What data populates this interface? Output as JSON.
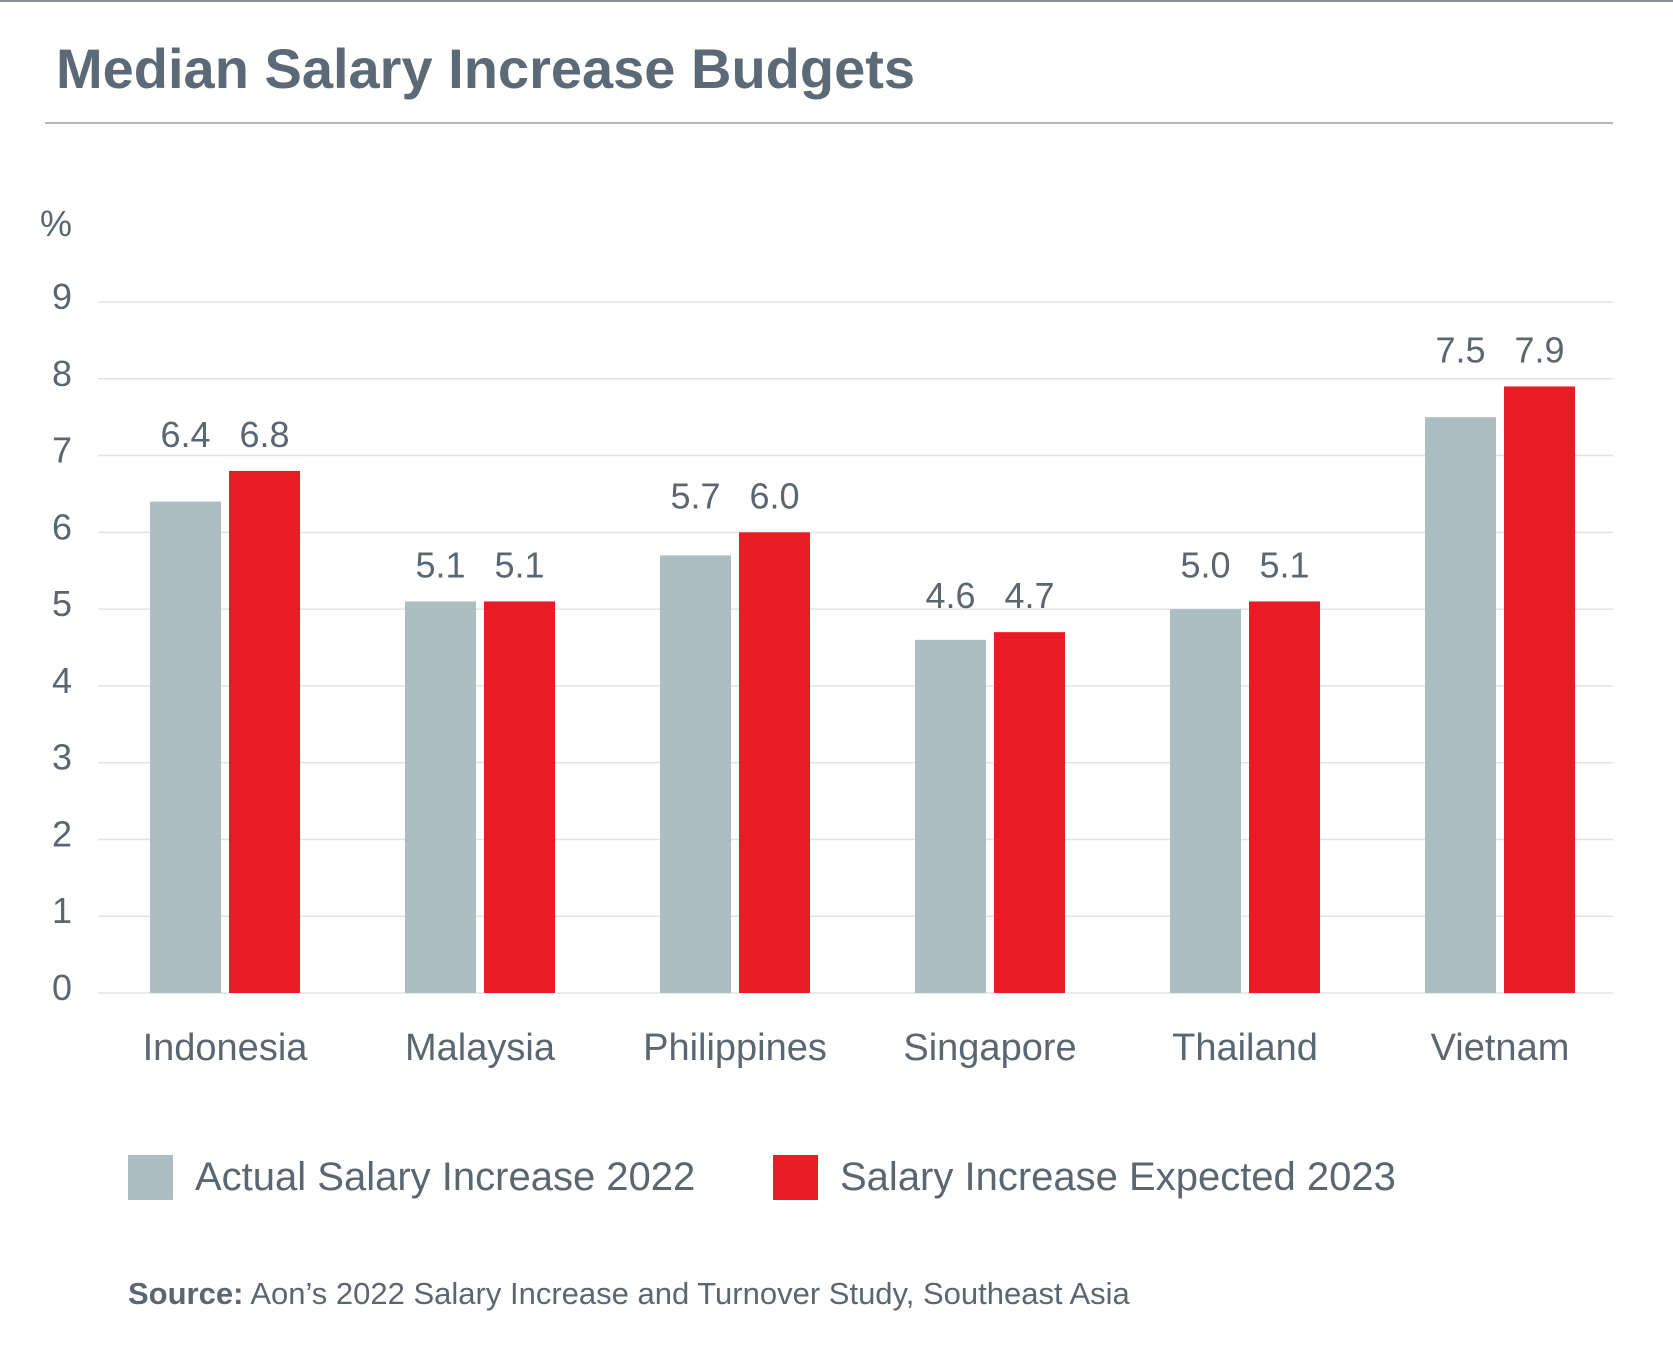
{
  "title": "Median Salary Increase Budgets",
  "colors": {
    "series_2022": "#adbec3",
    "series_2023": "#e81c24",
    "text": "#5b6770",
    "grid": "#e1e3e5"
  },
  "chart_data": {
    "type": "bar",
    "title": "Median Salary Increase Budgets",
    "xlabel": "",
    "ylabel": "%",
    "ylim": [
      0,
      9
    ],
    "yticks": [
      0,
      1,
      2,
      3,
      4,
      5,
      6,
      7,
      8,
      9
    ],
    "grid": true,
    "legend_position": "bottom",
    "categories": [
      "Indonesia",
      "Malaysia",
      "Philippines",
      "Singapore",
      "Thailand",
      "Vietnam"
    ],
    "series": [
      {
        "name": "Actual Salary Increase 2022",
        "color": "#adbec3",
        "values": [
          6.4,
          5.1,
          5.7,
          4.6,
          5.0,
          7.5
        ],
        "labels": [
          "6.4",
          "5.1",
          "5.7",
          "4.6",
          "5.0",
          "7.5"
        ]
      },
      {
        "name": "Salary Increase Expected 2023",
        "color": "#e81c24",
        "values": [
          6.8,
          5.1,
          6.0,
          4.7,
          5.1,
          7.9
        ],
        "labels": [
          "6.8",
          "5.1",
          "6.0",
          "4.7",
          "5.1",
          "7.9"
        ]
      }
    ]
  },
  "legend": [
    {
      "label": "Actual Salary Increase 2022",
      "color": "#adbec3"
    },
    {
      "label": "Salary Increase Expected 2023",
      "color": "#e81c24"
    }
  ],
  "source": {
    "prefix": "Source:",
    "text": " Aon’s 2022 Salary Increase and Turnover Study, Southeast Asia"
  }
}
